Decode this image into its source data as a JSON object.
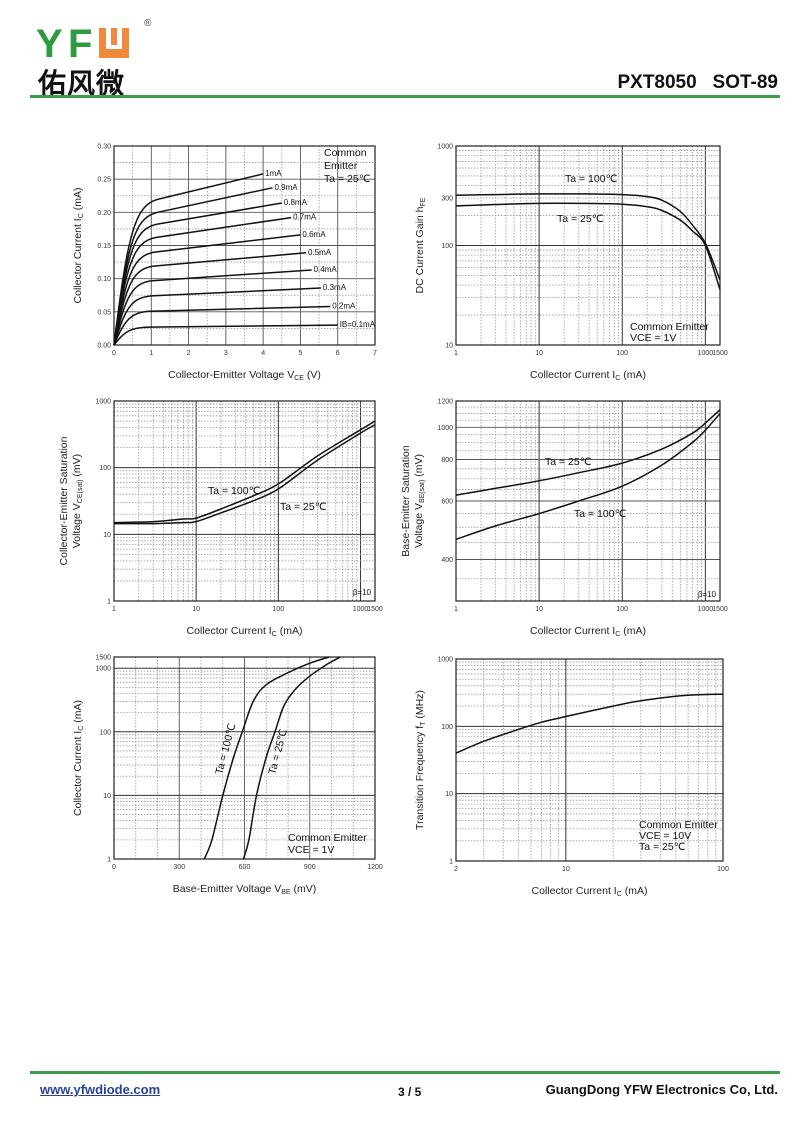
{
  "header": {
    "logo_text": "YFW",
    "logo_cn": "佑风微",
    "registered": "®",
    "doc_title": "PXT8050   SOT-89",
    "brand_green": "#2e9b3e",
    "brand_orange": "#ef8a3c"
  },
  "footer": {
    "website": "www.yfwdiode.com",
    "page": "3 / 5",
    "company": "GuangDong YFW Electronics Co, Ltd."
  },
  "chart_data": [
    {
      "id": "output",
      "type": "line",
      "title": "",
      "xlabel": "Collector-Emitter Voltage  V",
      "xlabel_sub": "CE",
      "xlabel_tail": "  (V)",
      "ylabel": "Collector Current  I",
      "ylabel_sub": "C",
      "ylabel_tail": "  (mA)",
      "xscale": "linear",
      "yscale": "linear",
      "xlim": [
        0,
        7
      ],
      "ylim": [
        0,
        0.3
      ],
      "xticks": [
        "0",
        "1",
        "2",
        "3",
        "4",
        "5",
        "6",
        "7"
      ],
      "yticks": [
        "0.00",
        "0.05",
        "0.10",
        "0.15",
        "0.20",
        "0.25",
        "0.30"
      ],
      "annotations": [
        "Common",
        "Emitter",
        "Ta = 25℃"
      ],
      "series": [
        {
          "name": "1mA",
          "label": "1mA",
          "sat": 0.22,
          "end_x": 4.0,
          "end_y": 0.258
        },
        {
          "name": "0.9mA",
          "label": "0.9mA",
          "sat": 0.2,
          "end_x": 4.25,
          "end_y": 0.237
        },
        {
          "name": "0.8mA",
          "label": "0.8mA",
          "sat": 0.182,
          "end_x": 4.5,
          "end_y": 0.214
        },
        {
          "name": "0.7mA",
          "label": "0.7mA",
          "sat": 0.162,
          "end_x": 4.75,
          "end_y": 0.192
        },
        {
          "name": "0.6mA",
          "label": "0.6mA",
          "sat": 0.14,
          "end_x": 5.0,
          "end_y": 0.166
        },
        {
          "name": "0.5mA",
          "label": "0.5mA",
          "sat": 0.119,
          "end_x": 5.15,
          "end_y": 0.139
        },
        {
          "name": "0.4mA",
          "label": "0.4mA",
          "sat": 0.097,
          "end_x": 5.3,
          "end_y": 0.113
        },
        {
          "name": "0.3mA",
          "label": "0.3mA",
          "sat": 0.074,
          "end_x": 5.55,
          "end_y": 0.086
        },
        {
          "name": "0.2mA",
          "label": "0.2mA",
          "sat": 0.051,
          "end_x": 5.8,
          "end_y": 0.058
        },
        {
          "name": "0.1mA",
          "label": "IB=0.1mA",
          "sat": 0.027,
          "end_x": 6.0,
          "end_y": 0.03
        }
      ]
    },
    {
      "id": "hfe",
      "type": "line",
      "xlabel": "Collector Current  I",
      "xlabel_sub": "C",
      "xlabel_tail": "  (mA)",
      "ylabel": "DC Current Gain  h",
      "ylabel_sub": "FE",
      "ylabel_tail": "",
      "xscale": "log",
      "yscale": "log",
      "xlim": [
        1,
        1500
      ],
      "ylim": [
        10,
        1000
      ],
      "xticks": [
        "1",
        "10",
        "100",
        "1000",
        "1500"
      ],
      "yticks": [
        "10",
        "100",
        "300",
        "1000"
      ],
      "annotations": [
        "Ta = 100℃",
        "Ta = 25℃",
        "Common Emitter",
        "VCE = 1V"
      ],
      "series": [
        {
          "name": "Ta = 100℃",
          "x": [
            1,
            3,
            10,
            30,
            100,
            200,
            300,
            500,
            700,
            1000,
            1500
          ],
          "y": [
            320,
            325,
            330,
            330,
            325,
            310,
            285,
            220,
            160,
            105,
            45
          ]
        },
        {
          "name": "Ta = 25℃",
          "x": [
            1,
            3,
            10,
            30,
            100,
            200,
            300,
            500,
            700,
            1000,
            1500
          ],
          "y": [
            250,
            258,
            265,
            265,
            260,
            245,
            225,
            180,
            140,
            100,
            36
          ]
        }
      ]
    },
    {
      "id": "vcesat",
      "type": "line",
      "xlabel": "Collector Current  I",
      "xlabel_sub": "C",
      "xlabel_tail": "  (mA)",
      "ylabel_line1": "Collector-Emitter Saturation",
      "ylabel": "Voltage V",
      "ylabel_sub": "CE(sat)",
      "ylabel_tail": "  (mV)",
      "xscale": "log",
      "yscale": "log",
      "xlim": [
        1,
        1500
      ],
      "ylim": [
        1,
        1000
      ],
      "xticks": [
        "1",
        "10",
        "100",
        "1000",
        "1500"
      ],
      "yticks": [
        "1",
        "10",
        "100",
        "1000"
      ],
      "annotations": [
        "Ta = 100℃",
        "Ta = 25℃",
        "β=10"
      ],
      "series": [
        {
          "name": "Ta = 100℃",
          "x": [
            1,
            3,
            7,
            10,
            20,
            50,
            100,
            300,
            1000,
            1500
          ],
          "y": [
            15,
            15.5,
            17,
            17.5,
            24,
            38,
            57,
            150,
            370,
            500
          ]
        },
        {
          "name": "Ta = 25℃",
          "x": [
            1,
            3,
            7,
            10,
            20,
            50,
            100,
            300,
            1000,
            1500
          ],
          "y": [
            14.5,
            14.5,
            15,
            15.5,
            21,
            32,
            48,
            130,
            330,
            440
          ]
        }
      ]
    },
    {
      "id": "vbesat",
      "type": "line",
      "xlabel": "Collector Current  I",
      "xlabel_sub": "C",
      "xlabel_tail": "  (mA)",
      "ylabel_line1": "Base-Emitter Saturation",
      "ylabel": "Voltage V",
      "ylabel_sub": "BE(sat)",
      "ylabel_tail": "  (mV)",
      "xscale": "log",
      "yscale": "log",
      "xlim": [
        1,
        1500
      ],
      "ylim": [
        300,
        1200
      ],
      "xticks": [
        "1",
        "10",
        "100",
        "1000",
        "1500"
      ],
      "yticks": [
        "400",
        "600",
        "800",
        "1000",
        "1200"
      ],
      "annotations": [
        "Ta = 25℃",
        "Ta = 100℃",
        "β=10"
      ],
      "series": [
        {
          "name": "Ta = 25℃",
          "x": [
            1,
            3,
            10,
            30,
            100,
            300,
            700,
            1000,
            1500
          ],
          "y": [
            625,
            655,
            690,
            730,
            780,
            860,
            960,
            1030,
            1130
          ]
        },
        {
          "name": "Ta = 100℃",
          "x": [
            1,
            3,
            10,
            30,
            100,
            300,
            700,
            1000,
            1500
          ],
          "y": [
            460,
            505,
            550,
            600,
            665,
            770,
            900,
            980,
            1100
          ]
        }
      ]
    },
    {
      "id": "vbe",
      "type": "line",
      "xlabel": "Base-Emitter Voltage  V",
      "xlabel_sub": "BE",
      "xlabel_tail": "  (mV)",
      "ylabel": "Collector Current  I",
      "ylabel_sub": "C",
      "ylabel_tail": "  (mA)",
      "xscale": "linear",
      "yscale": "log",
      "xlim": [
        0,
        1200
      ],
      "ylim": [
        1,
        1500
      ],
      "xticks": [
        "0",
        "300",
        "600",
        "900",
        "1200"
      ],
      "yticks": [
        "1",
        "10",
        "100",
        "1000",
        "1500"
      ],
      "annotations": [
        "Ta = 100℃",
        "Ta = 25℃",
        "Common Emitter",
        "VCE = 1V"
      ],
      "series": [
        {
          "name": "Ta = 100℃",
          "x": [
            415,
            450,
            500,
            550,
            590,
            640,
            700,
            800,
            900,
            990
          ],
          "y": [
            1,
            2,
            10,
            40,
            100,
            300,
            550,
            850,
            1200,
            1500
          ]
        },
        {
          "name": "Ta = 25℃",
          "x": [
            595,
            620,
            655,
            700,
            740,
            780,
            830,
            900,
            980,
            1040
          ],
          "y": [
            1,
            2,
            10,
            40,
            100,
            250,
            450,
            750,
            1150,
            1500
          ]
        }
      ]
    },
    {
      "id": "ft",
      "type": "line",
      "xlabel": "Collector Current  I",
      "xlabel_sub": "C",
      "xlabel_tail": "  (mA)",
      "ylabel": "Transition Frequency   f",
      "ylabel_sub": "T",
      "ylabel_tail": "  (MHz)",
      "xscale": "log",
      "yscale": "log",
      "xlim": [
        2,
        100
      ],
      "ylim": [
        1,
        1000
      ],
      "xticks": [
        "2",
        "10",
        "100"
      ],
      "yticks": [
        "1",
        "10",
        "100",
        "1000"
      ],
      "annotations": [
        "Common Emitter",
        "VCE = 10V",
        "Ta = 25℃"
      ],
      "series": [
        {
          "name": "fT",
          "x": [
            2,
            3,
            5,
            7,
            10,
            20,
            30,
            50,
            70,
            100
          ],
          "y": [
            40,
            60,
            90,
            115,
            140,
            200,
            240,
            280,
            295,
            300
          ]
        }
      ]
    }
  ]
}
